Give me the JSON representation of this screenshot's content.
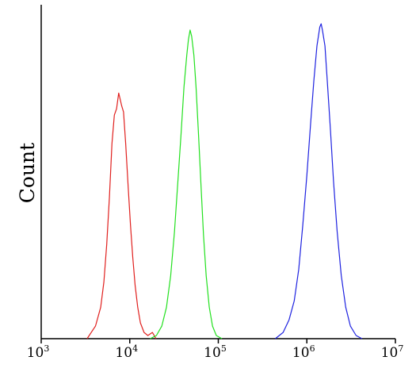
{
  "chart_data": {
    "type": "line",
    "title": "",
    "ylabel": "Count",
    "xlabel": "",
    "xscale": "log",
    "xlim": [
      1000,
      10000000
    ],
    "ylim": [
      0,
      1
    ],
    "grid": false,
    "legend": "none",
    "x_ticks": [
      {
        "value": 1000,
        "base": "10",
        "exp": "3"
      },
      {
        "value": 10000,
        "base": "10",
        "exp": "4"
      },
      {
        "value": 100000,
        "base": "10",
        "exp": "5"
      },
      {
        "value": 1000000,
        "base": "10",
        "exp": "6"
      },
      {
        "value": 10000000,
        "base": "10",
        "exp": "7"
      }
    ],
    "series": [
      {
        "color": "#e0201e",
        "points": [
          [
            3300,
            0.0
          ],
          [
            4100,
            0.04
          ],
          [
            4700,
            0.1
          ],
          [
            5100,
            0.18
          ],
          [
            5500,
            0.3
          ],
          [
            5900,
            0.45
          ],
          [
            6300,
            0.62
          ],
          [
            6700,
            0.71
          ],
          [
            7100,
            0.73
          ],
          [
            7500,
            0.78
          ],
          [
            7800,
            0.76
          ],
          [
            8100,
            0.74
          ],
          [
            8500,
            0.72
          ],
          [
            9000,
            0.62
          ],
          [
            9600,
            0.48
          ],
          [
            10200,
            0.36
          ],
          [
            10800,
            0.26
          ],
          [
            11500,
            0.17
          ],
          [
            12300,
            0.1
          ],
          [
            13200,
            0.05
          ],
          [
            14500,
            0.02
          ],
          [
            16000,
            0.01
          ],
          [
            18000,
            0.02
          ],
          [
            19800,
            0.0
          ]
        ]
      },
      {
        "color": "#22e01e",
        "points": [
          [
            17000,
            0.0
          ],
          [
            20000,
            0.01
          ],
          [
            23000,
            0.04
          ],
          [
            26000,
            0.1
          ],
          [
            29000,
            0.2
          ],
          [
            32000,
            0.34
          ],
          [
            35000,
            0.5
          ],
          [
            38000,
            0.65
          ],
          [
            41000,
            0.8
          ],
          [
            44000,
            0.9
          ],
          [
            46000,
            0.95
          ],
          [
            48000,
            0.98
          ],
          [
            50000,
            0.96
          ],
          [
            53000,
            0.9
          ],
          [
            56000,
            0.8
          ],
          [
            60000,
            0.64
          ],
          [
            64000,
            0.48
          ],
          [
            68000,
            0.33
          ],
          [
            73000,
            0.2
          ],
          [
            79000,
            0.1
          ],
          [
            86000,
            0.04
          ],
          [
            95000,
            0.01
          ],
          [
            110000,
            0.0
          ]
        ]
      },
      {
        "color": "#1e22e0",
        "points": [
          [
            440000,
            0.0
          ],
          [
            540000,
            0.02
          ],
          [
            630000,
            0.06
          ],
          [
            720000,
            0.12
          ],
          [
            810000,
            0.22
          ],
          [
            900000,
            0.36
          ],
          [
            1000000,
            0.52
          ],
          [
            1100000,
            0.68
          ],
          [
            1200000,
            0.82
          ],
          [
            1300000,
            0.93
          ],
          [
            1400000,
            0.99
          ],
          [
            1450000,
            1.0
          ],
          [
            1500000,
            0.98
          ],
          [
            1600000,
            0.93
          ],
          [
            1700000,
            0.82
          ],
          [
            1850000,
            0.66
          ],
          [
            2000000,
            0.5
          ],
          [
            2200000,
            0.34
          ],
          [
            2450000,
            0.2
          ],
          [
            2750000,
            0.1
          ],
          [
            3100000,
            0.04
          ],
          [
            3600000,
            0.01
          ],
          [
            4200000,
            0.0
          ]
        ]
      }
    ]
  }
}
